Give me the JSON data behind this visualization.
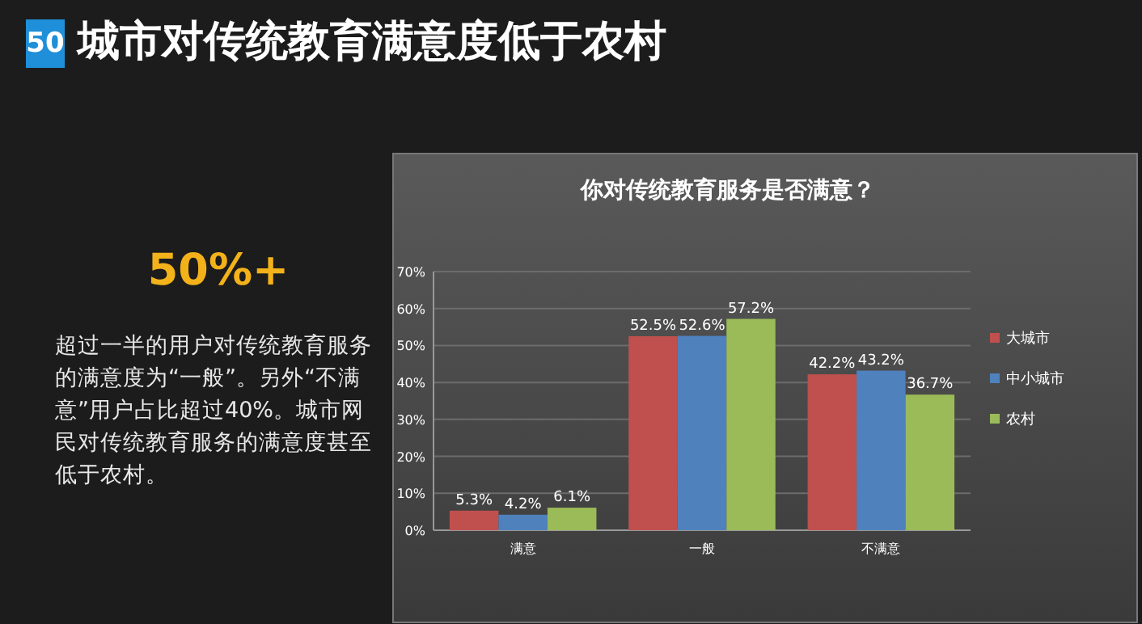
{
  "chart_data": {
    "type": "bar",
    "title": "城市对传统教育满意度低于农村",
    "subtitle": "你对传统教育服务是否满意？",
    "annotations": [
      "50",
      "50%+",
      "超过一半的用户对传统教育服务的满意度为“一般”。另外“不满意”用户占比超过40%。城市网民对传统教育服务的满意度甚至低于农村。"
    ],
    "categories": [
      "满意",
      "一般",
      "不满意"
    ],
    "series": [
      {
        "name": "大城市",
        "color": "#c0504d",
        "values": [
          5.3,
          52.5,
          42.2
        ],
        "value_labels": [
          "5.3%",
          "52.5%",
          "42.2%"
        ]
      },
      {
        "name": "中小城市",
        "color": "#4f81bd",
        "values": [
          4.2,
          52.6,
          43.2
        ],
        "value_labels": [
          "4.2%",
          "52.6%",
          "43.2%"
        ]
      },
      {
        "name": "农村",
        "color": "#9bbb59",
        "values": [
          6.1,
          57.2,
          36.7
        ],
        "value_labels": [
          "6.1%",
          "57.2%",
          "36.7%"
        ]
      }
    ],
    "ylim": [
      0,
      70
    ],
    "yticks": [
      {
        "value": 0,
        "label": "0%"
      },
      {
        "value": 10,
        "label": "10%"
      },
      {
        "value": 20,
        "label": "20%"
      },
      {
        "value": 30,
        "label": "30%"
      },
      {
        "value": 40,
        "label": "40%"
      },
      {
        "value": 50,
        "label": "50%"
      },
      {
        "value": 60,
        "label": "60%"
      },
      {
        "value": 70,
        "label": "70%"
      }
    ],
    "grid": "y",
    "legend": "right"
  }
}
